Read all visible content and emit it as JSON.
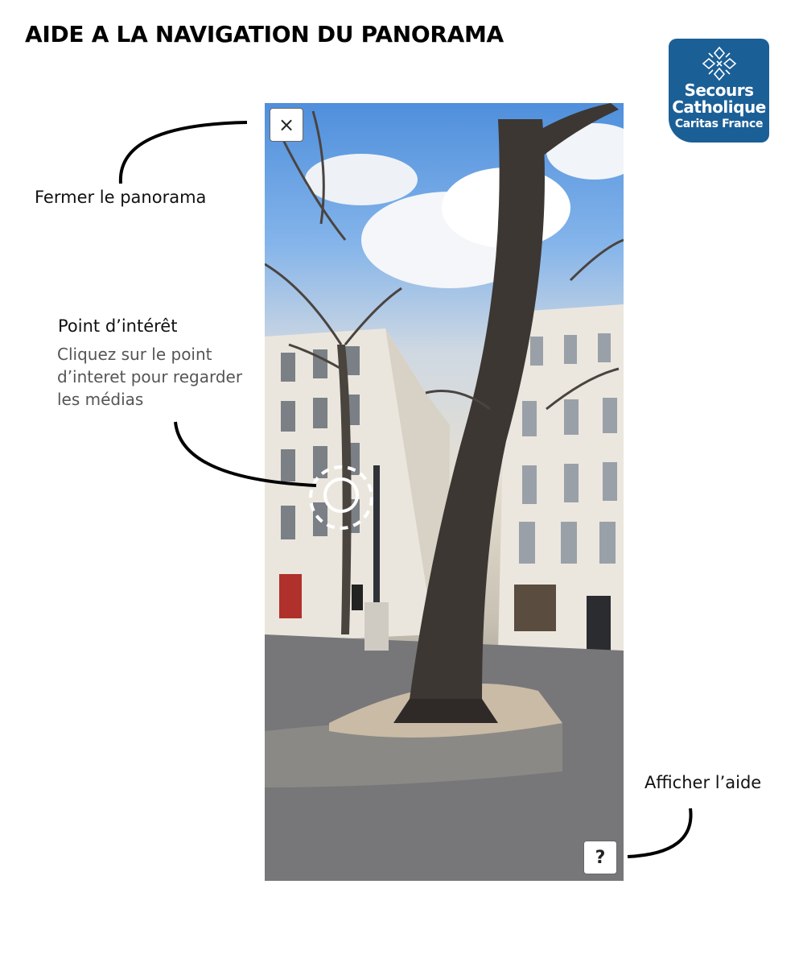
{
  "page": {
    "title": "AIDE A LA NAVIGATION DU PANORAMA"
  },
  "logo": {
    "line1": "Secours",
    "line2": "Catholique",
    "line3": "Caritas France",
    "background": "#1b5f97"
  },
  "callouts": {
    "close": {
      "label": "Fermer le panorama"
    },
    "poi": {
      "title": "Point d’intérêt",
      "description": "Cliquez sur le point\nd’interet pour regarder\nles médias"
    },
    "help": {
      "label": "Afficher l’aide"
    }
  },
  "panorama": {
    "close_button": {
      "glyph": "×",
      "icon": "close-icon"
    },
    "help_button": {
      "glyph": "?",
      "icon": "question-icon"
    },
    "poi_icon": "point-of-interest-icon"
  }
}
